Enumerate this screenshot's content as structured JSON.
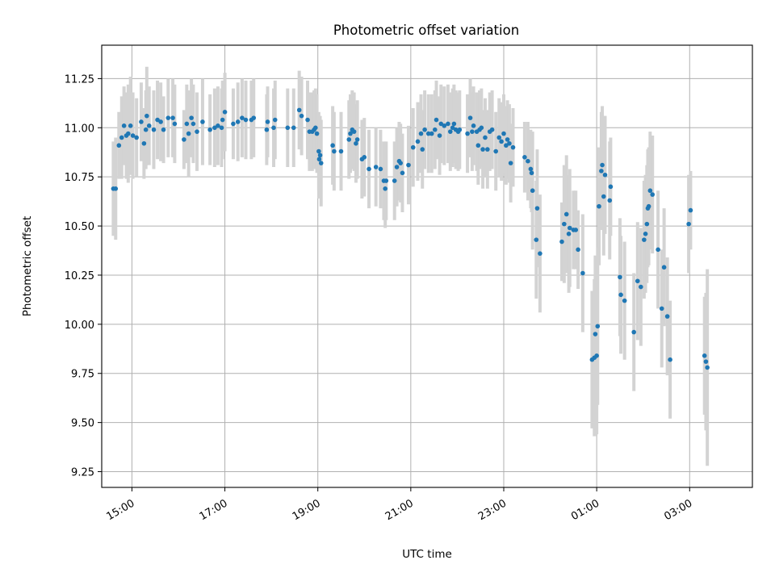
{
  "chart_data": {
    "type": "scatter",
    "title": "Photometric offset variation",
    "xlabel": "UTC time",
    "ylabel": "Photometric offset",
    "x_unit": "hours since 00:00 UTC of first day",
    "xlim": [
      14.35,
      28.35
    ],
    "ylim": [
      9.17,
      11.42
    ],
    "xticks": [
      15,
      17,
      19,
      21,
      23,
      25,
      27
    ],
    "xtick_labels": [
      "15:00",
      "17:00",
      "19:00",
      "21:00",
      "23:00",
      "01:00",
      "03:00"
    ],
    "yticks": [
      9.25,
      9.5,
      9.75,
      10.0,
      10.25,
      10.5,
      10.75,
      11.0,
      11.25
    ],
    "ytick_labels": [
      "9.25",
      "9.50",
      "9.75",
      "10.00",
      "10.25",
      "10.50",
      "10.75",
      "11.00",
      "11.25"
    ],
    "grid": true,
    "colors": {
      "points": "#1f77b4",
      "error_bars": "#d3d3d3"
    },
    "points": [
      [
        14.6,
        10.69,
        0.24
      ],
      [
        14.65,
        10.69,
        0.26
      ],
      [
        14.72,
        10.91,
        0.17
      ],
      [
        14.78,
        10.95,
        0.21
      ],
      [
        14.83,
        11.01,
        0.2
      ],
      [
        14.88,
        10.96,
        0.22
      ],
      [
        14.92,
        10.97,
        0.25
      ],
      [
        14.97,
        11.01,
        0.25
      ],
      [
        15.02,
        10.96,
        0.22
      ],
      [
        15.1,
        10.95,
        0.2
      ],
      [
        15.2,
        11.03,
        0.2
      ],
      [
        15.26,
        10.92,
        0.18
      ],
      [
        15.32,
        11.06,
        0.25
      ],
      [
        15.3,
        10.99,
        0.2
      ],
      [
        15.37,
        11.01,
        0.2
      ],
      [
        15.47,
        10.99,
        0.2
      ],
      [
        15.55,
        11.04,
        0.2
      ],
      [
        15.62,
        11.03,
        0.2
      ],
      [
        15.68,
        10.99,
        0.17
      ],
      [
        15.78,
        11.05,
        0.2
      ],
      [
        15.88,
        11.05,
        0.2
      ],
      [
        15.92,
        11.02,
        0.2
      ],
      [
        16.12,
        10.94,
        0.15
      ],
      [
        16.18,
        11.02,
        0.2
      ],
      [
        16.22,
        10.97,
        0.22
      ],
      [
        16.28,
        11.05,
        0.2
      ],
      [
        16.32,
        11.02,
        0.2
      ],
      [
        16.4,
        10.98,
        0.2
      ],
      [
        16.52,
        11.03,
        0.22
      ],
      [
        16.68,
        10.99,
        0.18
      ],
      [
        16.78,
        11.0,
        0.2
      ],
      [
        16.85,
        11.01,
        0.2
      ],
      [
        16.93,
        11.0,
        0.2
      ],
      [
        16.95,
        11.04,
        0.2
      ],
      [
        17.0,
        11.08,
        0.2
      ],
      [
        17.18,
        11.02,
        0.18
      ],
      [
        17.28,
        11.03,
        0.2
      ],
      [
        17.37,
        11.05,
        0.2
      ],
      [
        17.45,
        11.04,
        0.2
      ],
      [
        17.57,
        11.04,
        0.2
      ],
      [
        17.62,
        11.05,
        0.2
      ],
      [
        17.9,
        10.99,
        0.18
      ],
      [
        17.92,
        11.03,
        0.18
      ],
      [
        18.05,
        11.0,
        0.2
      ],
      [
        18.08,
        11.04,
        0.2
      ],
      [
        18.35,
        11.0,
        0.2
      ],
      [
        18.48,
        11.0,
        0.2
      ],
      [
        18.6,
        11.09,
        0.2
      ],
      [
        18.65,
        11.06,
        0.2
      ],
      [
        18.78,
        11.04,
        0.2
      ],
      [
        18.82,
        10.98,
        0.2
      ],
      [
        18.88,
        10.98,
        0.2
      ],
      [
        18.92,
        10.99,
        0.2
      ],
      [
        18.95,
        11.0,
        0.2
      ],
      [
        18.98,
        10.97,
        0.2
      ],
      [
        19.02,
        10.88,
        0.2
      ],
      [
        19.05,
        10.86,
        0.2
      ],
      [
        19.03,
        10.84,
        0.2
      ],
      [
        19.07,
        10.82,
        0.22
      ],
      [
        19.32,
        10.91,
        0.2
      ],
      [
        19.35,
        10.88,
        0.2
      ],
      [
        19.5,
        10.88,
        0.2
      ],
      [
        19.67,
        10.94,
        0.2
      ],
      [
        19.7,
        10.97,
        0.2
      ],
      [
        19.74,
        10.99,
        0.2
      ],
      [
        19.78,
        10.98,
        0.2
      ],
      [
        19.82,
        10.92,
        0.2
      ],
      [
        19.85,
        10.94,
        0.2
      ],
      [
        19.95,
        10.84,
        0.2
      ],
      [
        20.0,
        10.85,
        0.2
      ],
      [
        20.1,
        10.79,
        0.2
      ],
      [
        20.25,
        10.8,
        0.2
      ],
      [
        20.35,
        10.79,
        0.2
      ],
      [
        20.42,
        10.73,
        0.2
      ],
      [
        20.47,
        10.73,
        0.2
      ],
      [
        20.45,
        10.69,
        0.2
      ],
      [
        20.65,
        10.73,
        0.2
      ],
      [
        20.7,
        10.8,
        0.2
      ],
      [
        20.75,
        10.83,
        0.2
      ],
      [
        20.78,
        10.82,
        0.2
      ],
      [
        20.82,
        10.77,
        0.2
      ],
      [
        20.95,
        10.81,
        0.2
      ],
      [
        21.05,
        10.9,
        0.2
      ],
      [
        21.15,
        10.93,
        0.2
      ],
      [
        21.22,
        10.97,
        0.2
      ],
      [
        21.25,
        10.89,
        0.2
      ],
      [
        21.3,
        10.99,
        0.2
      ],
      [
        21.38,
        10.97,
        0.2
      ],
      [
        21.45,
        10.97,
        0.2
      ],
      [
        21.52,
        10.99,
        0.2
      ],
      [
        21.55,
        11.04,
        0.2
      ],
      [
        21.62,
        10.96,
        0.2
      ],
      [
        21.65,
        11.02,
        0.2
      ],
      [
        21.72,
        11.01,
        0.2
      ],
      [
        21.8,
        11.02,
        0.2
      ],
      [
        21.85,
        10.98,
        0.2
      ],
      [
        21.9,
        11.0,
        0.2
      ],
      [
        21.93,
        11.02,
        0.2
      ],
      [
        21.97,
        10.99,
        0.2
      ],
      [
        22.02,
        10.98,
        0.2
      ],
      [
        22.05,
        10.99,
        0.2
      ],
      [
        22.22,
        10.97,
        0.2
      ],
      [
        22.28,
        11.05,
        0.2
      ],
      [
        22.32,
        10.98,
        0.2
      ],
      [
        22.35,
        11.01,
        0.2
      ],
      [
        22.42,
        10.98,
        0.2
      ],
      [
        22.45,
        10.91,
        0.2
      ],
      [
        22.48,
        10.99,
        0.2
      ],
      [
        22.52,
        11.0,
        0.2
      ],
      [
        22.55,
        10.89,
        0.2
      ],
      [
        22.6,
        10.95,
        0.2
      ],
      [
        22.65,
        10.89,
        0.2
      ],
      [
        22.7,
        10.98,
        0.2
      ],
      [
        22.75,
        10.99,
        0.2
      ],
      [
        22.83,
        10.88,
        0.2
      ],
      [
        22.9,
        10.95,
        0.2
      ],
      [
        22.95,
        10.93,
        0.2
      ],
      [
        23.0,
        10.97,
        0.2
      ],
      [
        23.05,
        10.91,
        0.2
      ],
      [
        23.08,
        10.94,
        0.2
      ],
      [
        23.12,
        10.92,
        0.2
      ],
      [
        23.15,
        10.82,
        0.2
      ],
      [
        23.2,
        10.9,
        0.2
      ],
      [
        23.45,
        10.85,
        0.18
      ],
      [
        23.52,
        10.83,
        0.2
      ],
      [
        23.58,
        10.79,
        0.2
      ],
      [
        23.6,
        10.77,
        0.2
      ],
      [
        23.62,
        10.68,
        0.3
      ],
      [
        23.7,
        10.43,
        0.3
      ],
      [
        23.72,
        10.59,
        0.3
      ],
      [
        23.78,
        10.36,
        0.3
      ],
      [
        24.25,
        10.42,
        0.2
      ],
      [
        24.3,
        10.51,
        0.3
      ],
      [
        24.35,
        10.56,
        0.3
      ],
      [
        24.4,
        10.46,
        0.3
      ],
      [
        24.42,
        10.49,
        0.3
      ],
      [
        24.5,
        10.48,
        0.2
      ],
      [
        24.55,
        10.48,
        0.2
      ],
      [
        24.6,
        10.38,
        0.2
      ],
      [
        24.7,
        10.26,
        0.3
      ],
      [
        24.9,
        9.82,
        0.35
      ],
      [
        24.95,
        9.83,
        0.4
      ],
      [
        24.97,
        9.95,
        0.4
      ],
      [
        25.0,
        9.84,
        0.4
      ],
      [
        25.02,
        9.99,
        0.4
      ],
      [
        25.05,
        10.6,
        0.3
      ],
      [
        25.1,
        10.78,
        0.3
      ],
      [
        25.12,
        10.81,
        0.3
      ],
      [
        25.15,
        10.65,
        0.3
      ],
      [
        25.18,
        10.76,
        0.3
      ],
      [
        25.28,
        10.63,
        0.3
      ],
      [
        25.3,
        10.7,
        0.25
      ],
      [
        25.5,
        10.24,
        0.3
      ],
      [
        25.52,
        10.15,
        0.3
      ],
      [
        25.6,
        10.12,
        0.3
      ],
      [
        25.8,
        9.96,
        0.3
      ],
      [
        25.88,
        10.22,
        0.3
      ],
      [
        25.95,
        10.19,
        0.3
      ],
      [
        26.02,
        10.43,
        0.3
      ],
      [
        26.05,
        10.46,
        0.3
      ],
      [
        26.08,
        10.51,
        0.3
      ],
      [
        26.1,
        10.59,
        0.3
      ],
      [
        26.12,
        10.6,
        0.3
      ],
      [
        26.15,
        10.68,
        0.3
      ],
      [
        26.2,
        10.66,
        0.3
      ],
      [
        26.32,
        10.38,
        0.3
      ],
      [
        26.4,
        10.08,
        0.3
      ],
      [
        26.45,
        10.29,
        0.3
      ],
      [
        26.52,
        10.04,
        0.3
      ],
      [
        26.58,
        9.82,
        0.3
      ],
      [
        26.98,
        10.51,
        0.25
      ],
      [
        27.02,
        10.58,
        0.2
      ],
      [
        27.32,
        9.84,
        0.3
      ],
      [
        27.35,
        9.81,
        0.35
      ],
      [
        27.38,
        9.78,
        0.5
      ]
    ]
  }
}
